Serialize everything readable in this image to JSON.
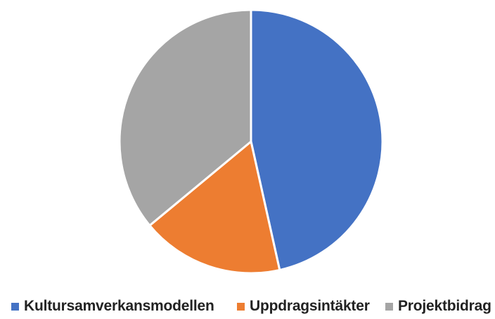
{
  "chart_data": {
    "type": "pie",
    "title": "",
    "series": [
      {
        "name": "Kultursamverkansmodellen",
        "value": 46.5,
        "color": "#4472C4"
      },
      {
        "name": "Uppdragsintäkter",
        "value": 17.5,
        "color": "#ED7D31"
      },
      {
        "name": "Projektbidrag",
        "value": 36.0,
        "color": "#A5A5A5"
      }
    ],
    "start_angle_deg": 0,
    "direction": "clockwise",
    "legend_position": "bottom",
    "data_labels": false
  }
}
